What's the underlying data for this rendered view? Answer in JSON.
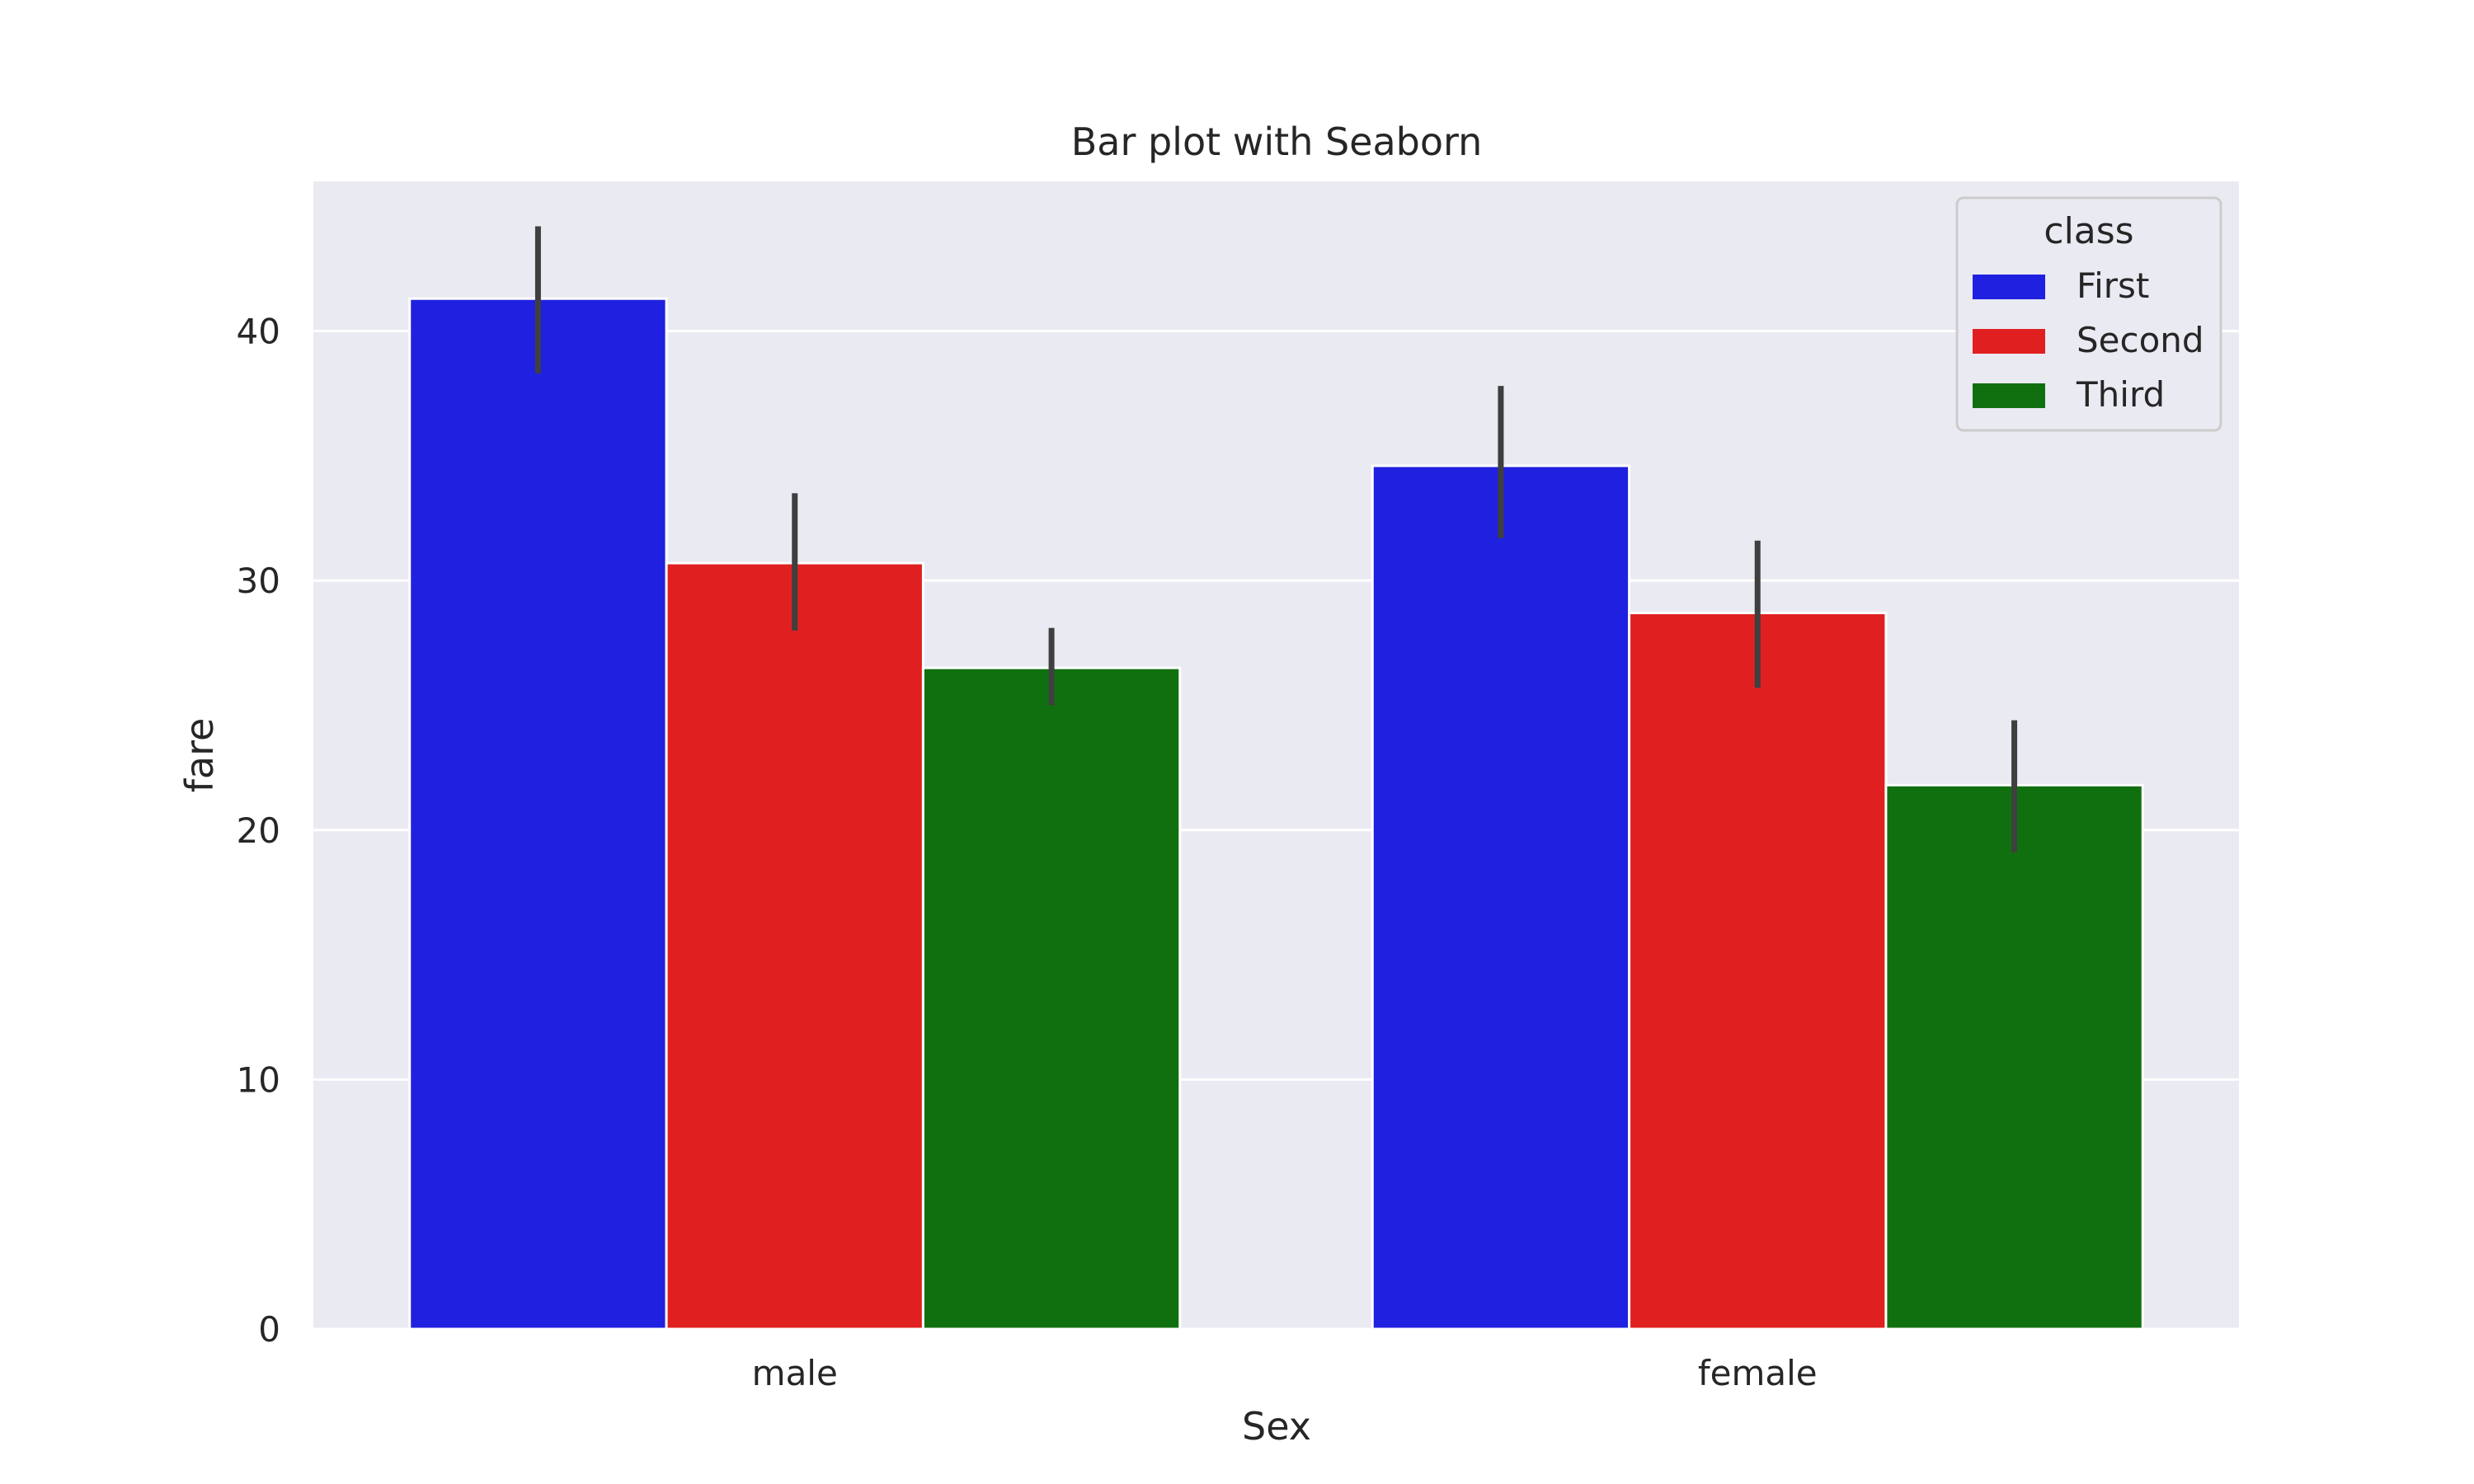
{
  "colors": {
    "plot_background": "#eaeaf2",
    "grid": "#ffffff",
    "error_bar": "#3f3f3f",
    "text": "#262626"
  },
  "chart_data": {
    "type": "bar",
    "title": "Bar plot with Seaborn",
    "xlabel": "Sex",
    "ylabel": "fare",
    "categories": [
      "male",
      "female"
    ],
    "series": [
      {
        "name": "First",
        "color": "#2020e0",
        "values": [
          41.3,
          34.6
        ],
        "ci_low": [
          38.3,
          31.7
        ],
        "ci_high": [
          44.2,
          37.8
        ]
      },
      {
        "name": "Second",
        "color": "#e02020",
        "values": [
          30.7,
          28.7
        ],
        "ci_low": [
          28.0,
          25.7
        ],
        "ci_high": [
          33.5,
          31.6
        ]
      },
      {
        "name": "Third",
        "color": "#107010",
        "values": [
          26.5,
          21.8
        ],
        "ci_low": [
          25.0,
          19.1
        ],
        "ci_high": [
          28.1,
          24.4
        ]
      }
    ],
    "ylim": [
      0,
      46
    ],
    "yticks": [
      0,
      10,
      20,
      30,
      40
    ],
    "grid": true,
    "legend": {
      "title": "class",
      "position": "top-right"
    }
  }
}
